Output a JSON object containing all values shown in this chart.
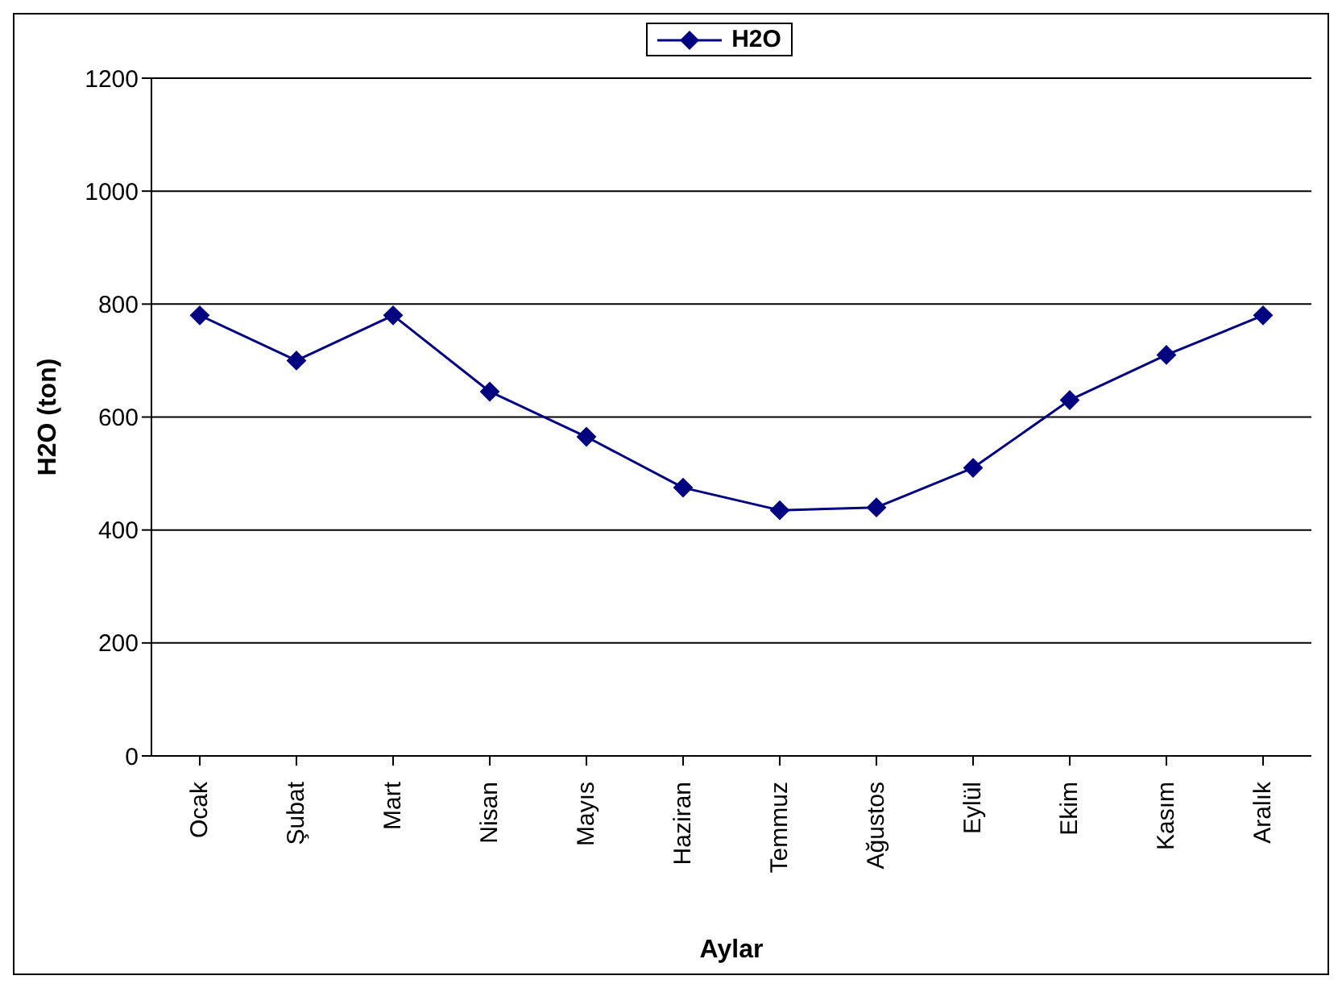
{
  "chart_data": {
    "type": "line",
    "xlabel": "Aylar",
    "ylabel": "H2O (ton)",
    "categories": [
      "Ocak",
      "Şubat",
      "Mart",
      "Nisan",
      "Mayıs",
      "Haziran",
      "Temmuz",
      "Ağustos",
      "Eylül",
      "Ekim",
      "Kasım",
      "Aralık"
    ],
    "series": [
      {
        "name": "H2O",
        "color": "#000080",
        "values": [
          780,
          700,
          780,
          645,
          565,
          475,
          435,
          440,
          510,
          630,
          710,
          780
        ]
      }
    ],
    "ylim": [
      0,
      1200
    ],
    "yticks": [
      0,
      200,
      400,
      600,
      800,
      1000,
      1200
    ],
    "grid": "y",
    "legend": "top",
    "marker": "diamond",
    "line_style": "solid"
  }
}
